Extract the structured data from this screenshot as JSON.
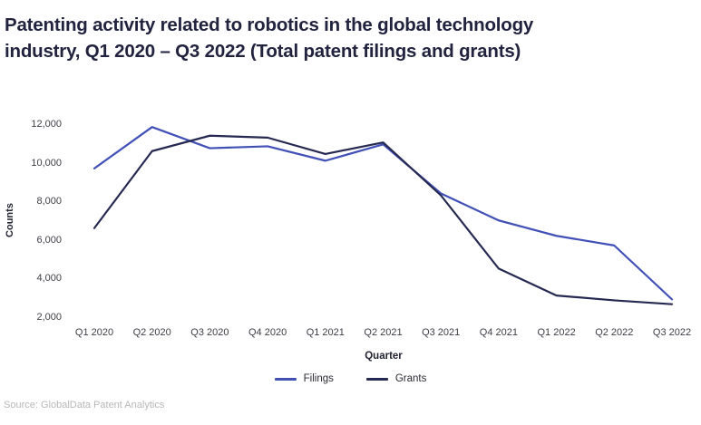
{
  "title": "Patenting activity related to robotics in the global technology industry, Q1 2020 – Q3 2022 (Total patent filings and grants)",
  "source": "Source: GlobalData Patent Analytics",
  "chart_data": {
    "type": "line",
    "title": "Patenting activity related to robotics in the global technology industry, Q1 2020 – Q3 2022 (Total patent filings and grants)",
    "xlabel": "Quarter",
    "ylabel": "Counts",
    "categories": [
      "Q1 2020",
      "Q2 2020",
      "Q3 2020",
      "Q4 2020",
      "Q1 2021",
      "Q2 2021",
      "Q3 2021",
      "Q4 2021",
      "Q1 2022",
      "Q2 2022",
      "Q3 2022"
    ],
    "series": [
      {
        "name": "Filings",
        "color": "#4150b7",
        "values": [
          9700,
          11850,
          10750,
          10850,
          10100,
          10950,
          8400,
          7000,
          6200,
          5700,
          2900
        ]
      },
      {
        "name": "Grants",
        "color": "#262a52",
        "values": [
          6600,
          10600,
          11400,
          11300,
          10450,
          11050,
          8300,
          4500,
          3100,
          2850,
          2650
        ]
      }
    ],
    "ylim": [
      2000,
      12000
    ],
    "yticks": [
      {
        "value": 2000,
        "label": "2,000"
      },
      {
        "value": 4000,
        "label": "4,000"
      },
      {
        "value": 6000,
        "label": "6,000"
      },
      {
        "value": 8000,
        "label": "8,000"
      },
      {
        "value": 10000,
        "label": "10,000"
      },
      {
        "value": 12000,
        "label": "12,000"
      }
    ],
    "grid": false,
    "legend_position": "bottom"
  }
}
